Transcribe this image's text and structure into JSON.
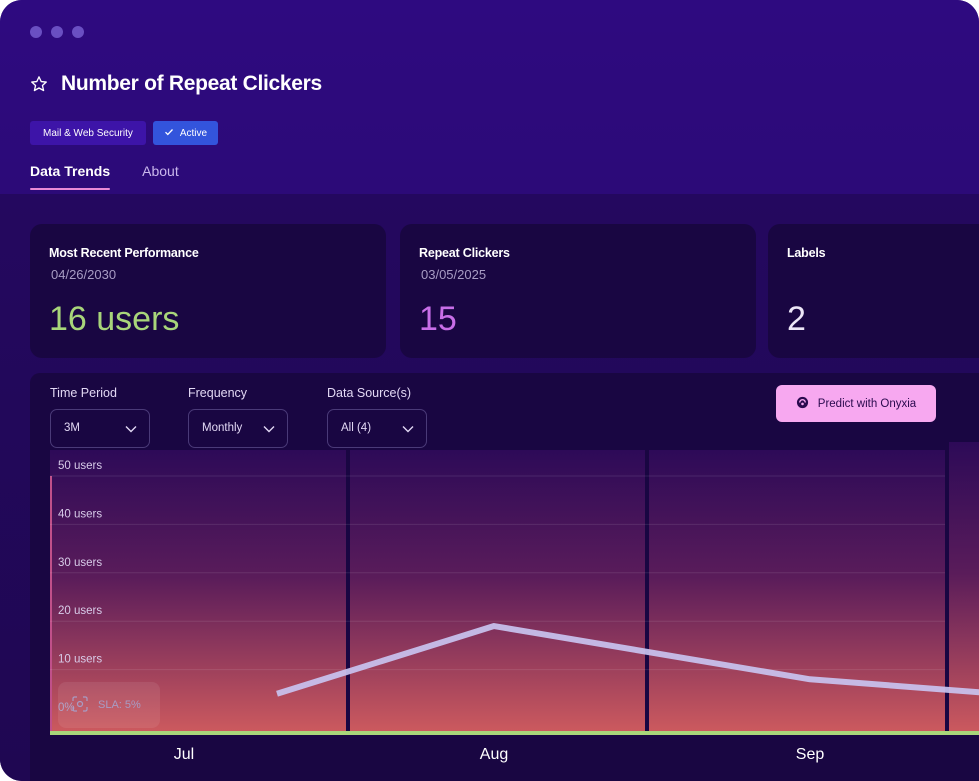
{
  "header": {
    "title": "Number of Repeat Clickers",
    "badges": {
      "category": "Mail & Web Security",
      "status": "Active"
    },
    "tabs": [
      {
        "label": "Data Trends"
      },
      {
        "label": "About"
      }
    ]
  },
  "cards": [
    {
      "title": "Most Recent Performance",
      "date": "04/26/2030",
      "value": "16 users",
      "value_color": "#a8d57a"
    },
    {
      "title": "Repeat Clickers",
      "date": "03/05/2025",
      "value": "15",
      "value_color": "#c86ee8"
    },
    {
      "title": "Labels",
      "date": "",
      "value": "2",
      "value_color": "#ece6f7"
    }
  ],
  "controls": {
    "time_period": {
      "label": "Time Period",
      "value": "3M"
    },
    "frequency": {
      "label": "Frequency",
      "value": "Monthly"
    },
    "data_source": {
      "label": "Data Source(s)",
      "value": "All (4)"
    },
    "predict_label": "Predict with Onyxia"
  },
  "sla": {
    "label": "SLA: 5%"
  },
  "chart_data": {
    "type": "line",
    "categories": [
      "Jul",
      "Aug",
      "Sep"
    ],
    "y_tick_labels": [
      "0%",
      "10 users",
      "20 users",
      "30 users",
      "40 users",
      "50 users"
    ],
    "ylim": [
      0,
      50
    ],
    "series": [
      {
        "x": [
          0.3,
          1.0,
          2.0,
          2.6
        ],
        "values": [
          5,
          19,
          8,
          5
        ],
        "color": "#c9c3f0"
      }
    ],
    "baseline_color": "#a8d57a",
    "grid": true
  }
}
